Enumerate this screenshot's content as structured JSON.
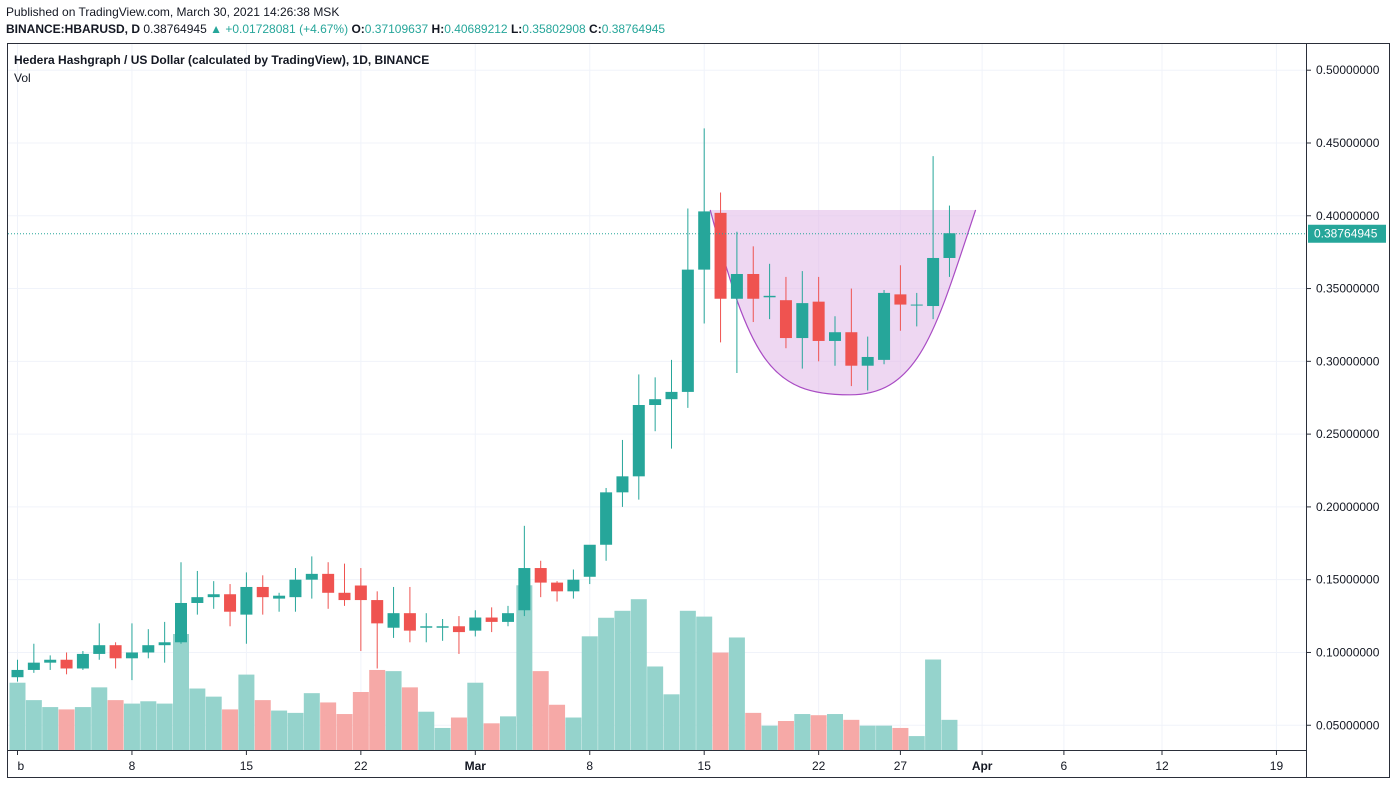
{
  "header": {
    "published": "Published on TradingView.com, March 30, 2021 14:26:38 MSK",
    "symbol": "BINANCE:HBARUSD, D",
    "price": "0.38764945",
    "change_arrow": "▲",
    "change": "+0.01728081 (+4.67%)",
    "o_label": "O:",
    "o_val": "0.37109637",
    "h_label": "H:",
    "h_val": "0.40689212",
    "l_label": "L:",
    "l_val": "0.35802908",
    "c_label": "C:",
    "c_val": "0.38764945"
  },
  "legend": {
    "title": "Hedera Hashgraph / US Dollar (calculated by TradingView), 1D, BINANCE",
    "volume_label": "Vol"
  },
  "colors": {
    "up": "#26a69a",
    "down": "#ef5350",
    "vol_up": "#95d3cc",
    "vol_down": "#f6a9a7",
    "pattern_fill": "#e3bde9",
    "pattern_stroke": "#a94cc4",
    "grid": "#f0f3fa"
  },
  "chart_data": {
    "type": "candlestick",
    "symbol": "BINANCE:HBARUSD",
    "interval": "1D",
    "y_axis": {
      "ticks": [
        "0.50000000",
        "0.45000000",
        "0.40000000",
        "0.35000000",
        "0.30000000",
        "0.25000000",
        "0.20000000",
        "0.15000000",
        "0.10000000",
        "0.05000000"
      ],
      "tick_values": [
        0.5,
        0.45,
        0.4,
        0.35,
        0.3,
        0.25,
        0.2,
        0.15,
        0.1,
        0.05
      ],
      "range": [
        0.033,
        0.518
      ]
    },
    "x_axis": {
      "ticks": [
        {
          "label": "b",
          "day": 0
        },
        {
          "label": "8",
          "day": 7
        },
        {
          "label": "15",
          "day": 14
        },
        {
          "label": "22",
          "day": 21
        },
        {
          "label": "Mar",
          "day": 28
        },
        {
          "label": "8",
          "day": 35
        },
        {
          "label": "15",
          "day": 42
        },
        {
          "label": "22",
          "day": 49
        },
        {
          "label": "27",
          "day": 54
        },
        {
          "label": "Apr",
          "day": 59
        },
        {
          "label": "6",
          "day": 64
        },
        {
          "label": "12",
          "day": 70
        },
        {
          "label": "19",
          "day": 77
        }
      ],
      "bold_ticks": [
        "Mar",
        "Apr"
      ]
    },
    "last_price": 0.38764945,
    "last_price_label": "0.38764945",
    "volume_scale_max": 0.0,
    "candles": [
      {
        "d": 0,
        "o": 0.083,
        "h": 0.095,
        "l": 0.08,
        "c": 0.088
      },
      {
        "d": 1,
        "o": 0.088,
        "h": 0.106,
        "l": 0.086,
        "c": 0.093
      },
      {
        "d": 2,
        "o": 0.093,
        "h": 0.098,
        "l": 0.088,
        "c": 0.095
      },
      {
        "d": 3,
        "o": 0.095,
        "h": 0.1,
        "l": 0.085,
        "c": 0.089
      },
      {
        "d": 4,
        "o": 0.089,
        "h": 0.101,
        "l": 0.088,
        "c": 0.099
      },
      {
        "d": 5,
        "o": 0.099,
        "h": 0.12,
        "l": 0.095,
        "c": 0.105
      },
      {
        "d": 6,
        "o": 0.105,
        "h": 0.107,
        "l": 0.089,
        "c": 0.096
      },
      {
        "d": 7,
        "o": 0.096,
        "h": 0.12,
        "l": 0.081,
        "c": 0.1
      },
      {
        "d": 8,
        "o": 0.1,
        "h": 0.116,
        "l": 0.096,
        "c": 0.105
      },
      {
        "d": 9,
        "o": 0.105,
        "h": 0.121,
        "l": 0.093,
        "c": 0.107
      },
      {
        "d": 10,
        "o": 0.107,
        "h": 0.162,
        "l": 0.106,
        "c": 0.134
      },
      {
        "d": 11,
        "o": 0.134,
        "h": 0.156,
        "l": 0.126,
        "c": 0.138
      },
      {
        "d": 12,
        "o": 0.138,
        "h": 0.149,
        "l": 0.13,
        "c": 0.14
      },
      {
        "d": 13,
        "o": 0.14,
        "h": 0.147,
        "l": 0.118,
        "c": 0.128
      },
      {
        "d": 14,
        "o": 0.126,
        "h": 0.155,
        "l": 0.106,
        "c": 0.145
      },
      {
        "d": 15,
        "o": 0.145,
        "h": 0.153,
        "l": 0.126,
        "c": 0.138
      },
      {
        "d": 16,
        "o": 0.137,
        "h": 0.141,
        "l": 0.128,
        "c": 0.139
      },
      {
        "d": 17,
        "o": 0.138,
        "h": 0.158,
        "l": 0.128,
        "c": 0.15
      },
      {
        "d": 18,
        "o": 0.15,
        "h": 0.166,
        "l": 0.137,
        "c": 0.154
      },
      {
        "d": 19,
        "o": 0.154,
        "h": 0.162,
        "l": 0.13,
        "c": 0.141
      },
      {
        "d": 20,
        "o": 0.141,
        "h": 0.161,
        "l": 0.132,
        "c": 0.136
      },
      {
        "d": 21,
        "o": 0.146,
        "h": 0.158,
        "l": 0.101,
        "c": 0.136
      },
      {
        "d": 22,
        "o": 0.136,
        "h": 0.142,
        "l": 0.089,
        "c": 0.12
      },
      {
        "d": 23,
        "o": 0.117,
        "h": 0.145,
        "l": 0.11,
        "c": 0.127
      },
      {
        "d": 24,
        "o": 0.127,
        "h": 0.145,
        "l": 0.107,
        "c": 0.115
      },
      {
        "d": 25,
        "o": 0.117,
        "h": 0.127,
        "l": 0.107,
        "c": 0.118
      },
      {
        "d": 26,
        "o": 0.117,
        "h": 0.123,
        "l": 0.108,
        "c": 0.118
      },
      {
        "d": 27,
        "o": 0.118,
        "h": 0.125,
        "l": 0.099,
        "c": 0.114
      },
      {
        "d": 28,
        "o": 0.115,
        "h": 0.129,
        "l": 0.111,
        "c": 0.124
      },
      {
        "d": 29,
        "o": 0.124,
        "h": 0.131,
        "l": 0.114,
        "c": 0.121
      },
      {
        "d": 30,
        "o": 0.121,
        "h": 0.132,
        "l": 0.118,
        "c": 0.127
      },
      {
        "d": 31,
        "o": 0.129,
        "h": 0.187,
        "l": 0.125,
        "c": 0.158
      },
      {
        "d": 32,
        "o": 0.158,
        "h": 0.163,
        "l": 0.138,
        "c": 0.148
      },
      {
        "d": 33,
        "o": 0.148,
        "h": 0.149,
        "l": 0.135,
        "c": 0.142
      },
      {
        "d": 34,
        "o": 0.142,
        "h": 0.157,
        "l": 0.137,
        "c": 0.15
      },
      {
        "d": 35,
        "o": 0.152,
        "h": 0.173,
        "l": 0.147,
        "c": 0.174
      },
      {
        "d": 36,
        "o": 0.174,
        "h": 0.213,
        "l": 0.163,
        "c": 0.21
      },
      {
        "d": 37,
        "o": 0.21,
        "h": 0.246,
        "l": 0.2,
        "c": 0.221
      },
      {
        "d": 38,
        "o": 0.221,
        "h": 0.291,
        "l": 0.205,
        "c": 0.27
      },
      {
        "d": 39,
        "o": 0.27,
        "h": 0.289,
        "l": 0.252,
        "c": 0.274
      },
      {
        "d": 40,
        "o": 0.274,
        "h": 0.301,
        "l": 0.24,
        "c": 0.279
      },
      {
        "d": 41,
        "o": 0.279,
        "h": 0.405,
        "l": 0.268,
        "c": 0.363
      },
      {
        "d": 42,
        "o": 0.363,
        "h": 0.46,
        "l": 0.326,
        "c": 0.403
      },
      {
        "d": 43,
        "o": 0.402,
        "h": 0.416,
        "l": 0.313,
        "c": 0.343
      },
      {
        "d": 44,
        "o": 0.343,
        "h": 0.389,
        "l": 0.292,
        "c": 0.36
      },
      {
        "d": 45,
        "o": 0.36,
        "h": 0.379,
        "l": 0.327,
        "c": 0.343
      },
      {
        "d": 46,
        "o": 0.344,
        "h": 0.367,
        "l": 0.329,
        "c": 0.345
      },
      {
        "d": 47,
        "o": 0.342,
        "h": 0.358,
        "l": 0.309,
        "c": 0.316
      },
      {
        "d": 48,
        "o": 0.316,
        "h": 0.362,
        "l": 0.295,
        "c": 0.34
      },
      {
        "d": 49,
        "o": 0.341,
        "h": 0.358,
        "l": 0.3,
        "c": 0.314
      },
      {
        "d": 50,
        "o": 0.314,
        "h": 0.331,
        "l": 0.297,
        "c": 0.32
      },
      {
        "d": 51,
        "o": 0.32,
        "h": 0.35,
        "l": 0.283,
        "c": 0.297
      },
      {
        "d": 52,
        "o": 0.297,
        "h": 0.317,
        "l": 0.28,
        "c": 0.303
      },
      {
        "d": 53,
        "o": 0.301,
        "h": 0.349,
        "l": 0.298,
        "c": 0.347
      },
      {
        "d": 54,
        "o": 0.346,
        "h": 0.366,
        "l": 0.321,
        "c": 0.339
      },
      {
        "d": 55,
        "o": 0.339,
        "h": 0.347,
        "l": 0.324,
        "c": 0.339
      },
      {
        "d": 56,
        "o": 0.338,
        "h": 0.441,
        "l": 0.329,
        "c": 0.371
      },
      {
        "d": 57,
        "o": 0.371,
        "h": 0.407,
        "l": 0.358,
        "c": 0.388
      }
    ],
    "volume": [
      {
        "d": 0,
        "v": 0.58,
        "up": true
      },
      {
        "d": 1,
        "v": 0.43,
        "up": true
      },
      {
        "d": 2,
        "v": 0.37,
        "up": true
      },
      {
        "d": 3,
        "v": 0.35,
        "up": false
      },
      {
        "d": 4,
        "v": 0.37,
        "up": true
      },
      {
        "d": 5,
        "v": 0.54,
        "up": true
      },
      {
        "d": 6,
        "v": 0.43,
        "up": false
      },
      {
        "d": 7,
        "v": 0.4,
        "up": true
      },
      {
        "d": 8,
        "v": 0.42,
        "up": true
      },
      {
        "d": 9,
        "v": 0.4,
        "up": true
      },
      {
        "d": 10,
        "v": 1.0,
        "up": true
      },
      {
        "d": 11,
        "v": 0.53,
        "up": true
      },
      {
        "d": 12,
        "v": 0.46,
        "up": true
      },
      {
        "d": 13,
        "v": 0.35,
        "up": false
      },
      {
        "d": 14,
        "v": 0.65,
        "up": true
      },
      {
        "d": 15,
        "v": 0.43,
        "up": false
      },
      {
        "d": 16,
        "v": 0.34,
        "up": true
      },
      {
        "d": 17,
        "v": 0.32,
        "up": true
      },
      {
        "d": 18,
        "v": 0.49,
        "up": true
      },
      {
        "d": 19,
        "v": 0.41,
        "up": false
      },
      {
        "d": 20,
        "v": 0.31,
        "up": false
      },
      {
        "d": 21,
        "v": 0.5,
        "up": false
      },
      {
        "d": 22,
        "v": 0.69,
        "up": false
      },
      {
        "d": 23,
        "v": 0.68,
        "up": true
      },
      {
        "d": 24,
        "v": 0.54,
        "up": false
      },
      {
        "d": 25,
        "v": 0.33,
        "up": true
      },
      {
        "d": 26,
        "v": 0.19,
        "up": true
      },
      {
        "d": 27,
        "v": 0.28,
        "up": false
      },
      {
        "d": 28,
        "v": 0.58,
        "up": true
      },
      {
        "d": 29,
        "v": 0.23,
        "up": false
      },
      {
        "d": 30,
        "v": 0.29,
        "up": true
      },
      {
        "d": 31,
        "v": 1.42,
        "up": true
      },
      {
        "d": 32,
        "v": 0.68,
        "up": false
      },
      {
        "d": 33,
        "v": 0.39,
        "up": false
      },
      {
        "d": 34,
        "v": 0.28,
        "up": true
      },
      {
        "d": 35,
        "v": 0.98,
        "up": true
      },
      {
        "d": 36,
        "v": 1.14,
        "up": true
      },
      {
        "d": 37,
        "v": 1.2,
        "up": true
      },
      {
        "d": 38,
        "v": 1.3,
        "up": true
      },
      {
        "d": 39,
        "v": 0.72,
        "up": true
      },
      {
        "d": 40,
        "v": 0.48,
        "up": true
      },
      {
        "d": 41,
        "v": 1.2,
        "up": true
      },
      {
        "d": 42,
        "v": 1.15,
        "up": true
      },
      {
        "d": 43,
        "v": 0.84,
        "up": false
      },
      {
        "d": 44,
        "v": 0.97,
        "up": true
      },
      {
        "d": 45,
        "v": 0.32,
        "up": false
      },
      {
        "d": 46,
        "v": 0.21,
        "up": true
      },
      {
        "d": 47,
        "v": 0.25,
        "up": false
      },
      {
        "d": 48,
        "v": 0.31,
        "up": true
      },
      {
        "d": 49,
        "v": 0.3,
        "up": false
      },
      {
        "d": 50,
        "v": 0.31,
        "up": true
      },
      {
        "d": 51,
        "v": 0.26,
        "up": false
      },
      {
        "d": 52,
        "v": 0.21,
        "up": true
      },
      {
        "d": 53,
        "v": 0.21,
        "up": true
      },
      {
        "d": 54,
        "v": 0.19,
        "up": false
      },
      {
        "d": 55,
        "v": 0.12,
        "up": true
      },
      {
        "d": 56,
        "v": 0.78,
        "up": true
      },
      {
        "d": 57,
        "v": 0.26,
        "up": true
      }
    ],
    "cup_pattern": {
      "top_price": 0.404,
      "bottom_price": 0.277,
      "left_day": 42,
      "bottom_day": 50.9,
      "right_day": 58.6,
      "bottom_width_days": 1.2
    }
  }
}
